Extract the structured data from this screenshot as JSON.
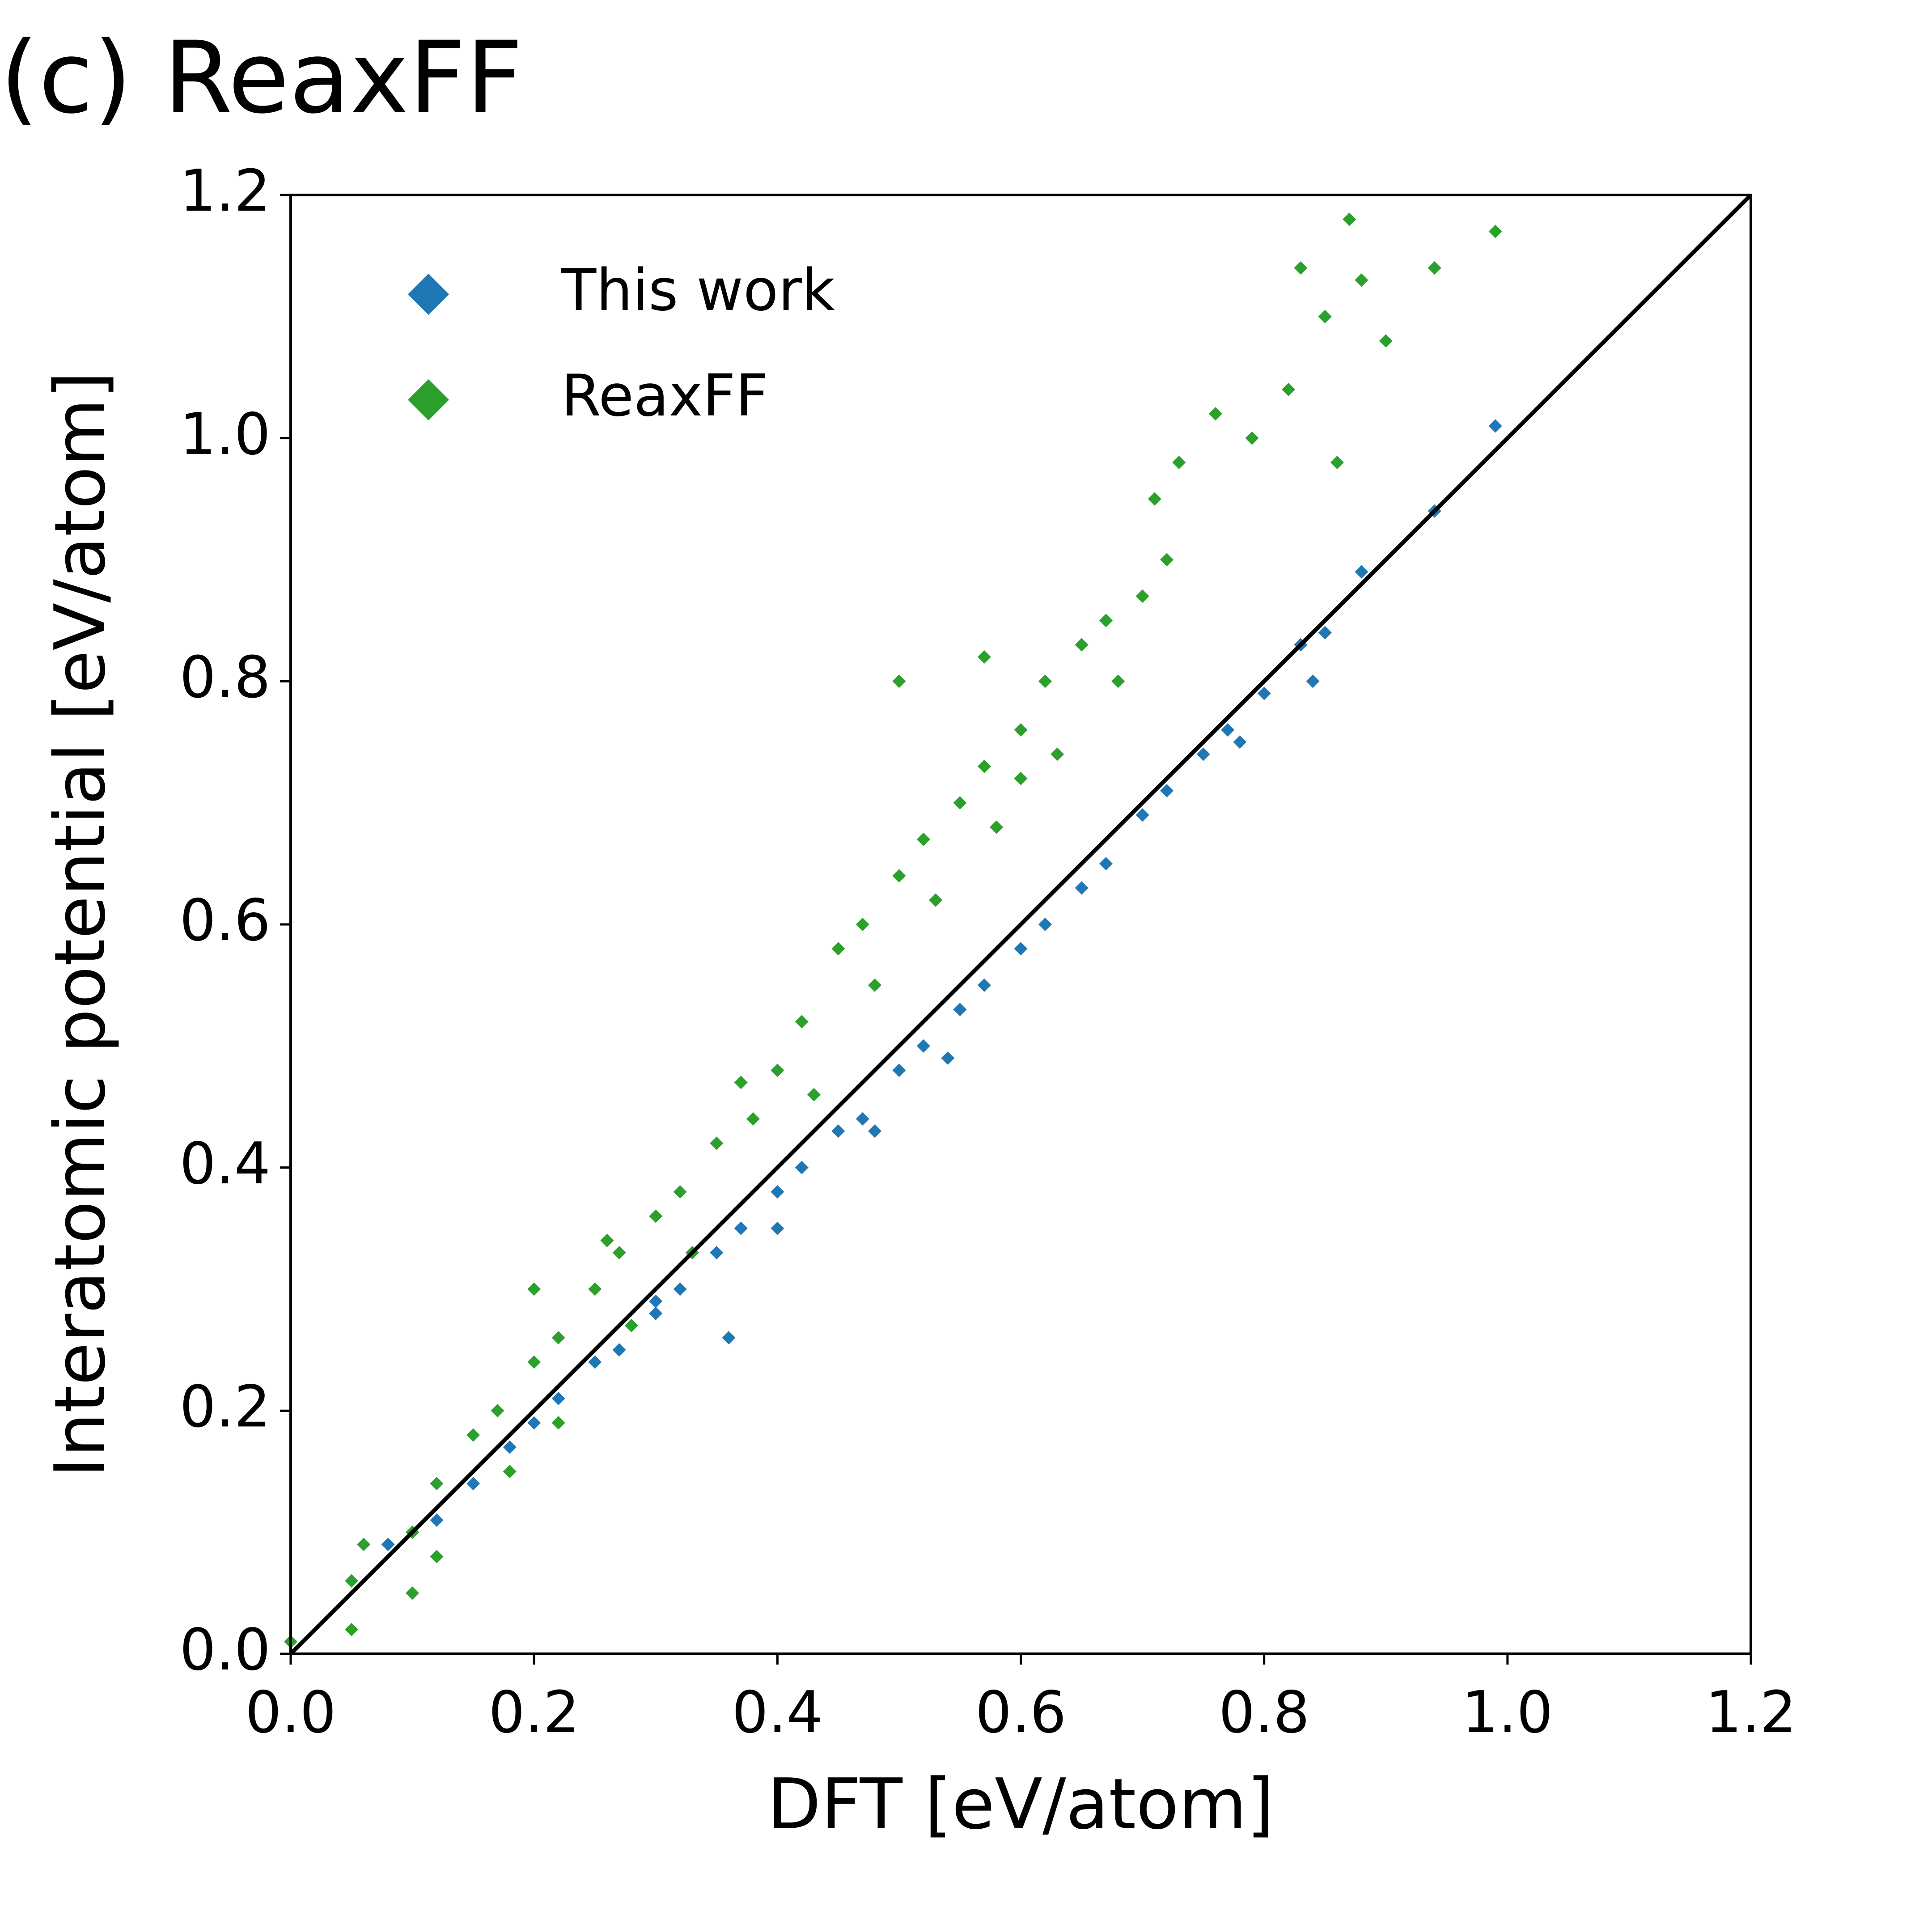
{
  "chart_data": {
    "type": "scatter",
    "title": "(c) ReaxFF",
    "xlabel": "DFT [eV/atom]",
    "ylabel": "Interatomic potential [eV/atom]",
    "xlim": [
      0,
      1.2
    ],
    "ylim": [
      0,
      1.2
    ],
    "xticks": [
      {
        "value": 0,
        "label": "0.0"
      },
      {
        "value": 0.2,
        "label": "0.2"
      },
      {
        "value": 0.4,
        "label": "0.4"
      },
      {
        "value": 0.6,
        "label": "0.6"
      },
      {
        "value": 0.8,
        "label": "0.8"
      },
      {
        "value": 1.0,
        "label": "1.0"
      },
      {
        "value": 1.2,
        "label": "1.2"
      }
    ],
    "yticks": [
      {
        "value": 0,
        "label": "0.0"
      },
      {
        "value": 0.2,
        "label": "0.2"
      },
      {
        "value": 0.4,
        "label": "0.4"
      },
      {
        "value": 0.6,
        "label": "0.6"
      },
      {
        "value": 0.8,
        "label": "0.8"
      },
      {
        "value": 1.0,
        "label": "1.0"
      },
      {
        "value": 1.2,
        "label": "1.2"
      }
    ],
    "legend": "upper left",
    "diagonal": {
      "x": [
        0,
        1.2
      ],
      "y": [
        0,
        1.2
      ],
      "color": "#000000"
    },
    "series": [
      {
        "name": "This work",
        "color": "#1f77b4",
        "x": [
          0.08,
          0.1,
          0.12,
          0.15,
          0.18,
          0.2,
          0.22,
          0.25,
          0.27,
          0.3,
          0.32,
          0.35,
          0.37,
          0.4,
          0.42,
          0.45,
          0.47,
          0.5,
          0.52,
          0.55,
          0.57,
          0.6,
          0.62,
          0.65,
          0.67,
          0.7,
          0.72,
          0.75,
          0.77,
          0.8,
          0.83,
          0.85,
          0.88,
          0.94,
          0.99,
          0.36,
          0.48,
          0.54,
          0.3,
          0.4,
          0.84,
          0.78
        ],
        "values": [
          0.09,
          0.1,
          0.11,
          0.14,
          0.17,
          0.19,
          0.21,
          0.24,
          0.25,
          0.28,
          0.3,
          0.33,
          0.35,
          0.38,
          0.4,
          0.43,
          0.44,
          0.48,
          0.5,
          0.53,
          0.55,
          0.58,
          0.6,
          0.63,
          0.65,
          0.69,
          0.71,
          0.74,
          0.76,
          0.79,
          0.83,
          0.84,
          0.89,
          0.94,
          1.01,
          0.26,
          0.43,
          0.49,
          0.29,
          0.35,
          0.8,
          0.75
        ]
      },
      {
        "name": "ReaxFF",
        "color": "#2ca02c",
        "x": [
          0.0,
          0.05,
          0.05,
          0.06,
          0.1,
          0.1,
          0.12,
          0.12,
          0.15,
          0.17,
          0.18,
          0.2,
          0.22,
          0.22,
          0.25,
          0.27,
          0.28,
          0.3,
          0.32,
          0.33,
          0.35,
          0.37,
          0.38,
          0.4,
          0.42,
          0.43,
          0.45,
          0.47,
          0.48,
          0.5,
          0.52,
          0.53,
          0.55,
          0.57,
          0.58,
          0.6,
          0.62,
          0.63,
          0.65,
          0.67,
          0.68,
          0.7,
          0.72,
          0.71,
          0.73,
          0.76,
          0.79,
          0.82,
          0.83,
          0.85,
          0.87,
          0.88,
          0.94,
          0.99,
          0.9,
          0.86,
          0.5,
          0.57,
          0.6,
          0.2,
          0.26
        ],
        "values": [
          0.01,
          0.02,
          0.06,
          0.09,
          0.05,
          0.1,
          0.14,
          0.08,
          0.18,
          0.2,
          0.15,
          0.24,
          0.26,
          0.19,
          0.3,
          0.33,
          0.27,
          0.36,
          0.38,
          0.33,
          0.42,
          0.47,
          0.44,
          0.48,
          0.52,
          0.46,
          0.58,
          0.6,
          0.55,
          0.64,
          0.67,
          0.62,
          0.7,
          0.73,
          0.68,
          0.76,
          0.8,
          0.74,
          0.83,
          0.85,
          0.8,
          0.87,
          0.9,
          0.95,
          0.98,
          1.02,
          1.0,
          1.04,
          1.14,
          1.1,
          1.18,
          1.13,
          1.14,
          1.17,
          1.08,
          0.98,
          0.8,
          0.82,
          0.72,
          0.3,
          0.34
        ]
      }
    ]
  }
}
